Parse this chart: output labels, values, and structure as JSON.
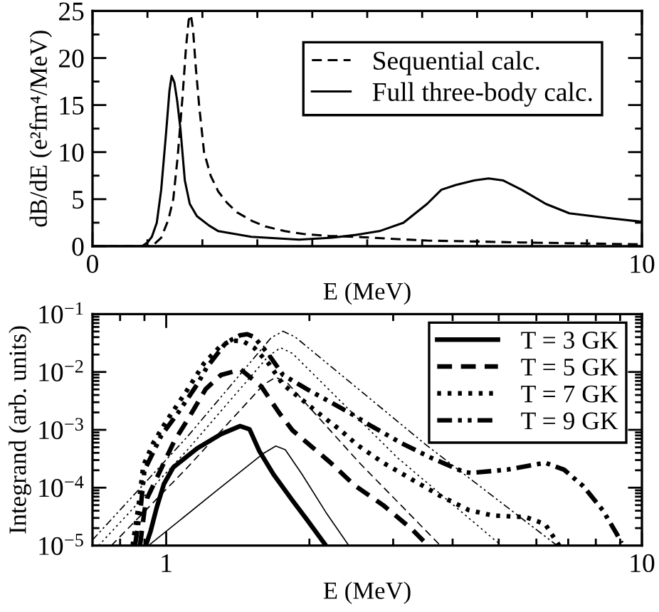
{
  "chart_data": [
    {
      "type": "line",
      "xlabel": "E (MeV)",
      "ylabel": "dB/dE (e²fm⁴/MeV)",
      "xlim": [
        0,
        10
      ],
      "ylim": [
        0,
        25
      ],
      "xticks": [
        0,
        {
          "value": 1,
          "label": null
        },
        {
          "value": 2,
          "label": null
        },
        {
          "value": 3,
          "label": null
        },
        {
          "value": 4,
          "label": null
        },
        {
          "value": 5,
          "label": null
        },
        {
          "value": 6,
          "label": null
        },
        {
          "value": 7,
          "label": null
        },
        {
          "value": 8,
          "label": null
        },
        {
          "value": 9,
          "label": null
        },
        10
      ],
      "yticks": [
        0,
        {
          "value": 2.5,
          "label": null
        },
        5,
        {
          "value": 7.5,
          "label": null
        },
        10,
        {
          "value": 12.5,
          "label": null
        },
        15,
        {
          "value": 17.5,
          "label": null
        },
        20,
        {
          "value": 22.5,
          "label": null
        },
        25
      ],
      "legend": "top right",
      "series": [
        {
          "name": "Sequential calc.",
          "color": "#000000",
          "line_style": "dashed",
          "x": [
            0,
            1.08,
            1.25,
            1.38,
            1.47,
            1.55,
            1.64,
            1.7,
            1.75,
            1.79,
            1.83,
            1.88,
            1.94,
            2.03,
            2.15,
            2.29,
            2.45,
            2.63,
            2.9,
            3.15,
            3.5,
            3.84,
            4.3,
            4.79,
            5.4,
            6.09,
            7.0,
            7.8,
            8.9,
            10
          ],
          "values": [
            0,
            0,
            0.9,
            2.8,
            5.0,
            9.5,
            16,
            21,
            24,
            24.6,
            23,
            19,
            15,
            10,
            7.5,
            5.8,
            4.6,
            3.6,
            2.7,
            2.1,
            1.6,
            1.3,
            1.1,
            1.0,
            0.8,
            0.6,
            0.5,
            0.4,
            0.3,
            0.2
          ]
        },
        {
          "name": "Full three-body calc.",
          "color": "#000000",
          "line_style": "solid",
          "x": [
            0,
            0.9,
            1.0,
            1.08,
            1.17,
            1.25,
            1.34,
            1.4,
            1.44,
            1.49,
            1.54,
            1.6,
            1.68,
            1.77,
            1.9,
            2.12,
            2.29,
            2.89,
            3.76,
            4.36,
            4.79,
            5.22,
            5.66,
            6.09,
            6.35,
            6.61,
            6.95,
            7.21,
            7.47,
            7.81,
            8.25,
            8.68,
            9.37,
            10
          ],
          "values": [
            0,
            0,
            0.4,
            1.0,
            2.5,
            6.0,
            12.1,
            16.5,
            18.1,
            17.4,
            15.5,
            12.5,
            7.0,
            4.5,
            3.2,
            2.2,
            1.6,
            1.0,
            0.7,
            0.9,
            1.2,
            1.6,
            2.5,
            4.5,
            6.0,
            6.5,
            7.0,
            7.2,
            7.0,
            6.0,
            4.5,
            3.5,
            3.0,
            2.6
          ]
        }
      ]
    },
    {
      "type": "line",
      "xlabel": "E (MeV)",
      "ylabel": "Integrand (arb. units)",
      "log": "xy",
      "xlim": [
        0.7,
        10
      ],
      "ylim": [
        1e-05,
        0.1
      ],
      "xticks": [
        {
          "value": 0.8,
          "label": null
        },
        {
          "value": 0.9,
          "label": null
        },
        1,
        {
          "value": 2,
          "label": null
        },
        {
          "value": 3,
          "label": null
        },
        {
          "value": 4,
          "label": null
        },
        {
          "value": 5,
          "label": null
        },
        {
          "value": 6,
          "label": null
        },
        {
          "value": 7,
          "label": null
        },
        {
          "value": 8,
          "label": null
        },
        {
          "value": 9,
          "label": null
        },
        10
      ],
      "yticks": [
        {
          "value": 1e-05,
          "label": "10$^{−5}$"
        },
        {
          "value": 2e-05,
          "label": null
        },
        {
          "value": 3e-05,
          "label": null
        },
        {
          "value": 4e-05,
          "label": null
        },
        {
          "value": 5e-05,
          "label": null
        },
        {
          "value": 6e-05,
          "label": null
        },
        {
          "value": 7e-05,
          "label": null
        },
        {
          "value": 8e-05,
          "label": null
        },
        {
          "value": 9e-05,
          "label": null
        },
        {
          "value": 0.0001,
          "label": "10$^{−4}$"
        },
        {
          "value": 0.0002,
          "label": null
        },
        {
          "value": 0.0003,
          "label": null
        },
        {
          "value": 0.0004,
          "label": null
        },
        {
          "value": 0.0005,
          "label": null
        },
        {
          "value": 0.0006,
          "label": null
        },
        {
          "value": 0.0007,
          "label": null
        },
        {
          "value": 0.0008,
          "label": null
        },
        {
          "value": 0.0009,
          "label": null
        },
        {
          "value": 0.001,
          "label": "10$^{−3}$"
        },
        {
          "value": 0.002,
          "label": null
        },
        {
          "value": 0.003,
          "label": null
        },
        {
          "value": 0.004,
          "label": null
        },
        {
          "value": 0.005,
          "label": null
        },
        {
          "value": 0.006,
          "label": null
        },
        {
          "value": 0.007,
          "label": null
        },
        {
          "value": 0.008,
          "label": null
        },
        {
          "value": 0.009,
          "label": null
        },
        {
          "value": 0.01,
          "label": "10$^{−2}$"
        },
        {
          "value": 0.02,
          "label": null
        },
        {
          "value": 0.03,
          "label": null
        },
        {
          "value": 0.04,
          "label": null
        },
        {
          "value": 0.05,
          "label": null
        },
        {
          "value": 0.06,
          "label": null
        },
        {
          "value": 0.07,
          "label": null
        },
        {
          "value": 0.08,
          "label": null
        },
        {
          "value": 0.09,
          "label": null
        },
        {
          "value": 0.1,
          "label": "10$^{−1}$"
        }
      ],
      "legend": "top right",
      "series": [
        {
          "name": "T = 3 GK",
          "color": "#000000",
          "line_style": "solid",
          "x": [
            0.906,
            0.927,
            0.955,
            0.989,
            1.035,
            1.162,
            1.304,
            1.43,
            1.497,
            1.568,
            1.681,
            1.843,
            1.975,
            2.166
          ],
          "values": [
            1e-05,
            1.76e-05,
            4.53e-05,
            0.000116,
            0.000225,
            0.000479,
            0.000843,
            0.00116,
            0.00102,
            0.000436,
            0.00017,
            6.01e-05,
            2.82e-05,
            1e-05
          ]
        },
        {
          "name": "T = 5 GK",
          "color": "#000000",
          "line_style": "dashed",
          "x": [
            0.881,
            0.9,
            0.912,
            1.04,
            1.109,
            1.211,
            1.304,
            1.436,
            1.586,
            1.727,
            1.843,
            2.216,
            2.488,
            2.857,
            3.278,
            3.55
          ],
          "values": [
            1e-05,
            4e-05,
            6.6e-05,
            0.00064,
            0.00149,
            0.00507,
            0.0089,
            0.011,
            0.00557,
            0.00197,
            0.00098,
            0.00027,
            0.00011,
            5e-05,
            1.95e-05,
            1e-05
          ]
        },
        {
          "name": "T = 7 GK",
          "color": "#000000",
          "line_style": "dotted",
          "x": [
            0.85,
            0.875,
            0.895,
            0.94,
            1.0,
            1.1,
            1.2,
            1.3,
            1.37,
            1.45,
            1.532,
            1.642,
            1.76,
            2.117,
            2.32,
            2.52,
            2.857,
            3.278,
            3.77,
            4.328,
            4.858,
            5.7,
            6.26,
            6.56,
            6.7
          ],
          "values": [
            1e-05,
            5e-05,
            0.00024,
            0.0006,
            0.0014,
            0.0045,
            0.014,
            0.028,
            0.035,
            0.034,
            0.026,
            0.014,
            0.0061,
            0.00179,
            0.001,
            0.00055,
            0.000271,
            0.00014,
            7.2e-05,
            4.1e-05,
            3.3e-05,
            3.1e-05,
            2.35e-05,
            1.3e-05,
            1e-05
          ]
        },
        {
          "name": "T = 9 GK",
          "color": "#000000",
          "line_style": "dashdotdot",
          "x": [
            0.86,
            0.885,
            0.9,
            0.977,
            1.059,
            1.162,
            1.217,
            1.335,
            1.43,
            1.48,
            1.532,
            1.642,
            1.76,
            1.975,
            2.216,
            2.43,
            2.667,
            3.133,
            3.6,
            4.23,
            4.38,
            5.21,
            6.26,
            6.86,
            7.53,
            8.27,
            8.85,
            9.06
          ],
          "values": [
            1e-05,
            5e-05,
            0.0002,
            0.0008,
            0.00197,
            0.0061,
            0.012,
            0.032,
            0.043,
            0.045,
            0.04,
            0.02,
            0.0089,
            0.00507,
            0.003,
            0.00197,
            0.00123,
            0.00058,
            0.00033,
            0.000186,
            0.00018,
            0.000205,
            0.00027,
            0.000205,
            0.000106,
            4.1e-05,
            1.6e-05,
            1.1e-05
          ]
        },
        {
          "color": "#000000",
          "line_style": "solid",
          "x": [
            0.918,
            1.274,
            1.605,
            1.7,
            1.78,
            1.93,
            2.166,
            2.42
          ],
          "values": [
            1e-05,
            8.78e-05,
            0.000396,
            0.000526,
            0.000453,
            0.00017,
            3.75e-05,
            1e-05
          ]
        },
        {
          "color": "#000000",
          "line_style": "dashed",
          "x": [
            0.767,
            1.109,
            1.605,
            1.7,
            1.801,
            2.546,
            3.77
          ],
          "values": [
            1e-05,
            0.000225,
            0.00612,
            0.00813,
            0.00635,
            0.000271,
            1e-05
          ]
        },
        {
          "color": "#000000",
          "line_style": "dotted",
          "x": [
            0.721,
            1.109,
            1.642,
            1.74,
            1.843,
            3.062,
            5.063
          ],
          "values": [
            1e-05,
            0.000453,
            0.019,
            0.0262,
            0.0209,
            0.00033,
            1e-05
          ]
        },
        {
          "color": "#000000",
          "line_style": "dashdotdot",
          "x": [
            0.7,
            1.109,
            1.661,
            1.76,
            1.865,
            3.517,
            6.631
          ],
          "values": [
            1.25e-05,
            0.000767,
            0.0389,
            0.0507,
            0.0405,
            0.00055,
            1e-05
          ]
        }
      ]
    }
  ]
}
